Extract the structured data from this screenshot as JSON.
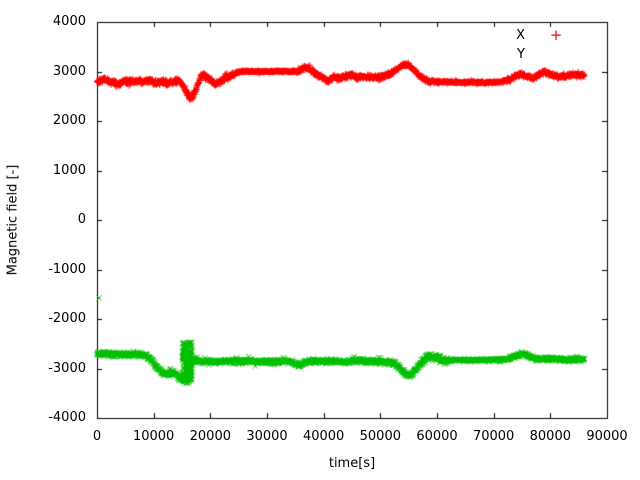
{
  "figure": {
    "background_color": "#ffffff",
    "frame_color": "#000000",
    "text_color": "#000000"
  },
  "chart_data": {
    "type": "scatter",
    "title": "",
    "xlabel": "time[s]",
    "ylabel": "Magnetic field [-]",
    "xlim": [
      0,
      90000
    ],
    "ylim": [
      -4000,
      4000
    ],
    "x_ticks": [
      0,
      10000,
      20000,
      30000,
      40000,
      50000,
      60000,
      70000,
      80000,
      90000
    ],
    "y_ticks": [
      -4000,
      -3000,
      -2000,
      -1000,
      0,
      1000,
      2000,
      3000,
      4000
    ],
    "grid": false,
    "legend_position": "top-right",
    "sample_step": 45,
    "t_range": [
      0,
      86000
    ],
    "series": [
      {
        "name": "X",
        "color": "#ff0000",
        "marker": "plus",
        "legend_marker_visible": true,
        "anchors": [
          [
            0,
            2800
          ],
          [
            1200,
            2840
          ],
          [
            2500,
            2790
          ],
          [
            3800,
            2750
          ],
          [
            5000,
            2800
          ],
          [
            6500,
            2810
          ],
          [
            8000,
            2790
          ],
          [
            9500,
            2820
          ],
          [
            10500,
            2760
          ],
          [
            11500,
            2800
          ],
          [
            12500,
            2750
          ],
          [
            13500,
            2790
          ],
          [
            14300,
            2820
          ],
          [
            15000,
            2750
          ],
          [
            15700,
            2600
          ],
          [
            16300,
            2470
          ],
          [
            16900,
            2500
          ],
          [
            17500,
            2650
          ],
          [
            18300,
            2900
          ],
          [
            19000,
            2930
          ],
          [
            19800,
            2850
          ],
          [
            20800,
            2750
          ],
          [
            21800,
            2800
          ],
          [
            22800,
            2870
          ],
          [
            23800,
            2920
          ],
          [
            25000,
            2990
          ],
          [
            26500,
            3005
          ],
          [
            28000,
            3000
          ],
          [
            30000,
            3000
          ],
          [
            32000,
            3005
          ],
          [
            34000,
            3000
          ],
          [
            35500,
            3010
          ],
          [
            36500,
            3060
          ],
          [
            37200,
            3090
          ],
          [
            38000,
            3000
          ],
          [
            39000,
            2930
          ],
          [
            40000,
            2870
          ],
          [
            40800,
            2800
          ],
          [
            41800,
            2890
          ],
          [
            42800,
            2850
          ],
          [
            43800,
            2890
          ],
          [
            44800,
            2940
          ],
          [
            45800,
            2880
          ],
          [
            47000,
            2890
          ],
          [
            48500,
            2880
          ],
          [
            50000,
            2890
          ],
          [
            51500,
            2940
          ],
          [
            52800,
            3030
          ],
          [
            54000,
            3130
          ],
          [
            54800,
            3140
          ],
          [
            55800,
            3050
          ],
          [
            56800,
            2930
          ],
          [
            57800,
            2840
          ],
          [
            58800,
            2800
          ],
          [
            60000,
            2790
          ],
          [
            62000,
            2785
          ],
          [
            64000,
            2780
          ],
          [
            66000,
            2780
          ],
          [
            68000,
            2780
          ],
          [
            70000,
            2785
          ],
          [
            71500,
            2790
          ],
          [
            72800,
            2830
          ],
          [
            74000,
            2920
          ],
          [
            74900,
            2950
          ],
          [
            75800,
            2900
          ],
          [
            76800,
            2860
          ],
          [
            77800,
            2920
          ],
          [
            78800,
            2990
          ],
          [
            79800,
            2960
          ],
          [
            80800,
            2900
          ],
          [
            81800,
            2880
          ],
          [
            82800,
            2910
          ],
          [
            83800,
            2940
          ],
          [
            85000,
            2920
          ],
          [
            86000,
            2930
          ]
        ],
        "noise_profile": [
          [
            0,
            9000,
            60
          ],
          [
            9000,
            15000,
            65
          ],
          [
            15000,
            17500,
            70
          ],
          [
            17500,
            24500,
            60
          ],
          [
            24500,
            35200,
            22
          ],
          [
            35200,
            52000,
            60
          ],
          [
            52000,
            56500,
            45
          ],
          [
            56500,
            60500,
            50
          ],
          [
            60500,
            72300,
            28
          ],
          [
            72300,
            86000,
            55
          ]
        ],
        "extra_points": [
          [
            84900,
            2990
          ]
        ]
      },
      {
        "name": "Y",
        "color": "#00c000",
        "marker": "cross",
        "legend_marker_visible": false,
        "anchors": [
          [
            0,
            -2710
          ],
          [
            1500,
            -2700
          ],
          [
            3000,
            -2720
          ],
          [
            4500,
            -2710
          ],
          [
            6000,
            -2720
          ],
          [
            7500,
            -2710
          ],
          [
            8800,
            -2740
          ],
          [
            9800,
            -2850
          ],
          [
            10800,
            -3000
          ],
          [
            11800,
            -3100
          ],
          [
            12800,
            -3120
          ],
          [
            13600,
            -3080
          ],
          [
            14400,
            -3170
          ],
          [
            15100,
            -3210
          ],
          [
            15800,
            -3150
          ],
          [
            16500,
            -2900
          ],
          [
            17200,
            -2830
          ],
          [
            18000,
            -2860
          ],
          [
            19500,
            -2855
          ],
          [
            21000,
            -2865
          ],
          [
            23000,
            -2855
          ],
          [
            25000,
            -2860
          ],
          [
            27000,
            -2850
          ],
          [
            29000,
            -2865
          ],
          [
            31000,
            -2870
          ],
          [
            33000,
            -2850
          ],
          [
            34800,
            -2880
          ],
          [
            35800,
            -2940
          ],
          [
            36600,
            -2870
          ],
          [
            38000,
            -2855
          ],
          [
            40000,
            -2860
          ],
          [
            42000,
            -2850
          ],
          [
            44000,
            -2865
          ],
          [
            46000,
            -2840
          ],
          [
            48000,
            -2855
          ],
          [
            50000,
            -2860
          ],
          [
            52000,
            -2870
          ],
          [
            53200,
            -2950
          ],
          [
            54300,
            -3100
          ],
          [
            55300,
            -3150
          ],
          [
            56300,
            -3030
          ],
          [
            57300,
            -2870
          ],
          [
            58300,
            -2770
          ],
          [
            59300,
            -2760
          ],
          [
            60300,
            -2810
          ],
          [
            61500,
            -2850
          ],
          [
            63000,
            -2830
          ],
          [
            65000,
            -2830
          ],
          [
            67000,
            -2830
          ],
          [
            69000,
            -2825
          ],
          [
            71000,
            -2820
          ],
          [
            72800,
            -2800
          ],
          [
            74200,
            -2740
          ],
          [
            75200,
            -2690
          ],
          [
            76200,
            -2760
          ],
          [
            77500,
            -2810
          ],
          [
            79000,
            -2800
          ],
          [
            81000,
            -2810
          ],
          [
            83000,
            -2820
          ],
          [
            85000,
            -2815
          ],
          [
            86000,
            -2820
          ]
        ],
        "noise_profile": [
          [
            0,
            8800,
            50
          ],
          [
            8800,
            14700,
            65
          ],
          [
            14700,
            17200,
            80
          ],
          [
            17200,
            34500,
            55
          ],
          [
            34500,
            53000,
            55
          ],
          [
            53000,
            57000,
            55
          ],
          [
            57000,
            62000,
            85
          ],
          [
            62000,
            72800,
            32
          ],
          [
            72800,
            86000,
            50
          ]
        ],
        "burst": {
          "t_range": [
            15100,
            16800
          ],
          "v_range": [
            -3300,
            -2470
          ],
          "count": 230
        },
        "extra_points": [
          [
            350,
            -1575
          ]
        ]
      }
    ]
  },
  "legend": {
    "entries": [
      {
        "label": "X",
        "marker_glyph": "+",
        "marker_color": "#ff0000",
        "marker_visible": true
      },
      {
        "label": "Y",
        "marker_glyph": "×",
        "marker_color": "#00c000",
        "marker_visible": false
      }
    ]
  }
}
